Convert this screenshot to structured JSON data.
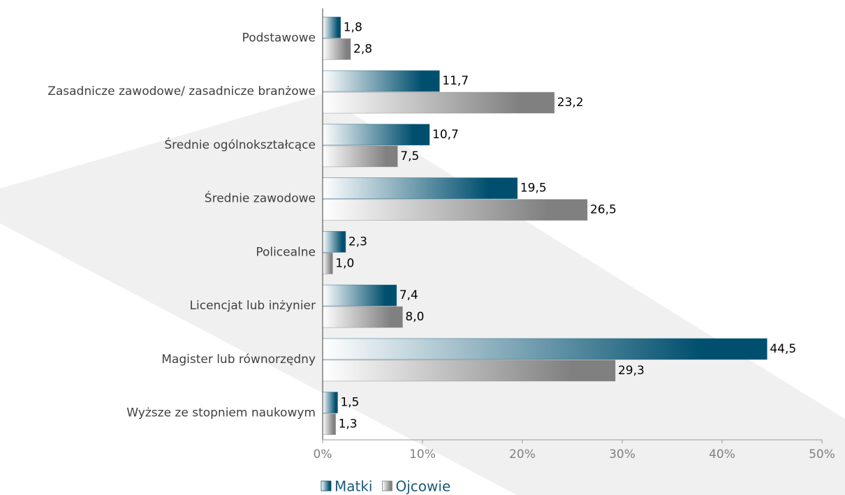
{
  "chart_data": {
    "type": "bar",
    "orientation": "horizontal",
    "categories": [
      "Podstawowe",
      "Zasadnicze zawodowe/ zasadnicze branżowe",
      "Średnie ogólnokształcące",
      "Średnie zawodowe",
      "Policealne",
      "Licencjat lub inżynier",
      "Magister lub równorzędny",
      "Wyższe ze stopniem naukowym"
    ],
    "series": [
      {
        "name": "Matki",
        "color": "#004f6e",
        "values": [
          1.8,
          11.7,
          10.7,
          19.5,
          2.3,
          7.4,
          44.5,
          1.5
        ],
        "value_labels": [
          "1,8",
          "11,7",
          "10,7",
          "19,5",
          "2,3",
          "7,4",
          "44,5",
          "1,5"
        ]
      },
      {
        "name": "Ojcowie",
        "color": "#808080",
        "values": [
          2.8,
          23.2,
          7.5,
          26.5,
          1.0,
          8.0,
          29.3,
          1.3
        ],
        "value_labels": [
          "2,8",
          "23,2",
          "7,5",
          "26,5",
          "1,0",
          "8,0",
          "29,3",
          "1,3"
        ]
      }
    ],
    "xlim": [
      0,
      50
    ],
    "xticks": [
      {
        "value": 0,
        "label": "0%"
      },
      {
        "value": 10,
        "label": "10%"
      },
      {
        "value": 20,
        "label": "20%"
      },
      {
        "value": 30,
        "label": "30%"
      },
      {
        "value": 40,
        "label": "40%"
      },
      {
        "value": 50,
        "label": "50%"
      }
    ],
    "grid": false,
    "legend": "bottom"
  }
}
